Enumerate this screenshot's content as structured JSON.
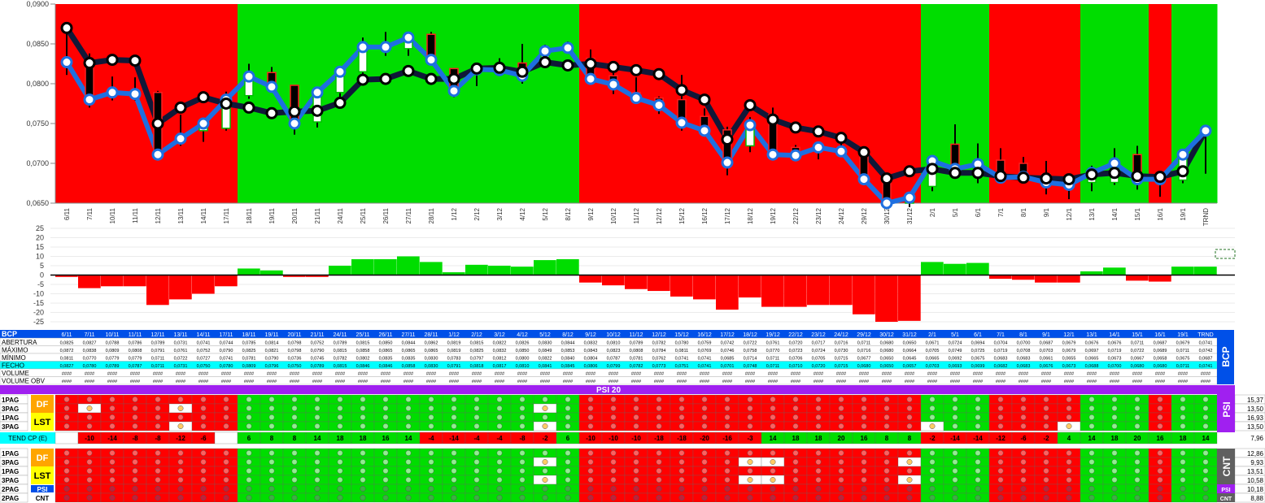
{
  "chart_data": [
    {
      "type": "candlestick",
      "ylim": [
        0.065,
        0.09
      ],
      "yticks": [
        "0,0650",
        "0,0700",
        "0,0750",
        "0,0800",
        "0,0850",
        "0,0900"
      ],
      "categories": [
        "6/11",
        "7/11",
        "10/11",
        "11/11",
        "12/11",
        "13/11",
        "14/11",
        "17/11",
        "18/11",
        "19/11",
        "20/11",
        "21/11",
        "24/11",
        "25/11",
        "26/11",
        "27/11",
        "28/11",
        "1/12",
        "2/12",
        "3/12",
        "4/12",
        "5/12",
        "8/12",
        "9/12",
        "10/12",
        "11/12",
        "12/12",
        "15/12",
        "16/12",
        "17/12",
        "18/12",
        "19/12",
        "22/12",
        "23/12",
        "24/12",
        "29/12",
        "30/12",
        "31/12",
        "2/1",
        "5/1",
        "6/1",
        "7/1",
        "8/1",
        "9/1",
        "12/1",
        "13/1",
        "14/1",
        "15/1",
        "16/1",
        "19/1",
        "TRND"
      ],
      "background": [
        "R",
        "R",
        "R",
        "R",
        "R",
        "R",
        "R",
        "R",
        "G",
        "G",
        "G",
        "G",
        "G",
        "G",
        "G",
        "G",
        "G",
        "G",
        "G",
        "G",
        "G",
        "G",
        "G",
        "R",
        "R",
        "R",
        "R",
        "R",
        "R",
        "R",
        "R",
        "R",
        "R",
        "R",
        "R",
        "R",
        "R",
        "R",
        "G",
        "G",
        "G",
        "R",
        "R",
        "R",
        "R",
        "G",
        "G",
        "G",
        "R",
        "G",
        "G"
      ],
      "open": [
        0.0825,
        0.0827,
        0.0788,
        0.0786,
        0.0789,
        0.0731,
        0.0741,
        0.0744,
        0.0785,
        0.0814,
        0.0798,
        0.0752,
        0.0789,
        0.0815,
        0.085,
        0.0844,
        0.0862,
        0.0819,
        0.0815,
        0.0822,
        0.0826,
        0.083,
        0.0844,
        0.0832,
        0.081,
        0.0789,
        0.0782,
        0.078,
        0.0759,
        0.0742,
        0.0722,
        0.0761,
        0.072,
        0.0717,
        0.0716,
        0.0711,
        0.068,
        0.065,
        0.0671,
        0.0724,
        0.0694,
        0.0704,
        0.07,
        0.0687,
        0.0679,
        0.0676,
        0.0676,
        0.0711,
        0.0687,
        0.0679,
        0.0741
      ],
      "high": [
        0.0872,
        0.0838,
        0.0809,
        0.0808,
        0.0791,
        0.0761,
        0.0752,
        0.079,
        0.0825,
        0.0821,
        0.0798,
        0.079,
        0.0815,
        0.0858,
        0.0865,
        0.0865,
        0.0865,
        0.0819,
        0.0825,
        0.0832,
        0.085,
        0.0849,
        0.0853,
        0.0843,
        0.0823,
        0.0808,
        0.0784,
        0.0811,
        0.0769,
        0.0746,
        0.0758,
        0.077,
        0.0723,
        0.0724,
        0.073,
        0.0716,
        0.068,
        0.0664,
        0.0705,
        0.0749,
        0.0725,
        0.0719,
        0.0708,
        0.0703,
        0.0679,
        0.0697,
        0.0719,
        0.0722,
        0.0689,
        0.0711,
        0.0742
      ],
      "low": [
        0.0811,
        0.077,
        0.0779,
        0.0779,
        0.0711,
        0.0722,
        0.0727,
        0.0741,
        0.0781,
        0.079,
        0.0736,
        0.0745,
        0.0782,
        0.0802,
        0.0835,
        0.0835,
        0.083,
        0.0783,
        0.0797,
        0.0812,
        0.08,
        0.0822,
        0.084,
        0.0804,
        0.0787,
        0.0781,
        0.0762,
        0.0741,
        0.0741,
        0.0685,
        0.0714,
        0.0711,
        0.0706,
        0.0705,
        0.0715,
        0.0677,
        0.065,
        0.0645,
        0.0665,
        0.0692,
        0.0675,
        0.0683,
        0.0683,
        0.0661,
        0.0655,
        0.0665,
        0.0673,
        0.0667,
        0.0658,
        0.0675,
        0.0687
      ],
      "close": [
        0.0827,
        0.078,
        0.0789,
        0.0787,
        0.0711,
        0.0731,
        0.075,
        0.078,
        0.0809,
        0.0796,
        0.075,
        0.0789,
        0.0815,
        0.0846,
        0.0846,
        0.0858,
        0.083,
        0.0791,
        0.0818,
        0.0817,
        0.081,
        0.0841,
        0.0845,
        0.0806,
        0.0799,
        0.0782,
        0.0773,
        0.0751,
        0.0741,
        0.0701,
        0.0748,
        0.0711,
        0.071,
        0.072,
        0.0715,
        0.068,
        0.065,
        0.0657,
        0.0703,
        0.0693,
        0.0699,
        0.0682,
        0.0683,
        0.0676,
        0.0673,
        0.0688,
        0.07,
        0.068,
        0.068,
        0.0711,
        0.0741
      ],
      "black_line": [
        0.087,
        0.0826,
        0.083,
        0.0829,
        0.075,
        0.077,
        0.0783,
        0.0775,
        0.077,
        0.0763,
        0.0765,
        0.0766,
        0.0776,
        0.0805,
        0.0806,
        0.0816,
        0.0806,
        0.0806,
        0.0819,
        0.082,
        0.0815,
        0.0827,
        0.0823,
        0.0825,
        0.0821,
        0.0817,
        0.0812,
        0.0792,
        0.078,
        0.073,
        0.0773,
        0.0755,
        0.0745,
        0.074,
        0.0732,
        0.0714,
        0.0681,
        0.069,
        0.0693,
        0.0688,
        0.0688,
        0.0684,
        0.0682,
        0.0681,
        0.068,
        0.0686,
        0.0688,
        0.0684,
        0.0683,
        0.069,
        0.0741
      ]
    },
    {
      "type": "bar",
      "ylim": [
        -25,
        25
      ],
      "yticks": [
        "25",
        "20",
        "15",
        "10",
        "5",
        "0",
        "-5",
        "-10",
        "-15",
        "-20",
        "-25"
      ],
      "values": [
        -1,
        -7,
        -6,
        -6,
        -16,
        -13,
        -10,
        -6,
        3.5,
        2.5,
        -1,
        -1,
        5,
        8.5,
        8.5,
        10,
        7,
        1.5,
        5.5,
        5,
        4.5,
        8,
        8.5,
        -4,
        -5.5,
        -7.5,
        -8.5,
        -11.5,
        -13,
        -18.5,
        -12,
        -17,
        -17,
        -16,
        -16,
        -21,
        -25,
        -24.5,
        7,
        6,
        6.5,
        -2,
        -2.5,
        -4,
        -4,
        2,
        4,
        -3,
        -3.5,
        4.5,
        4.5
      ]
    }
  ],
  "table": {
    "ticker": "BCP",
    "side_label": "BCP",
    "row_labels": [
      "ABERTURA",
      "MÁXIMO",
      "MÍNIMO",
      "FECHO",
      "VOLUME",
      "VOLUME OBV"
    ],
    "volume_placeholder": "####"
  },
  "psi": {
    "title": "PSI 20",
    "side_label": "PSI",
    "rows": [
      {
        "label": "1PAG",
        "tag": "DF",
        "value": "15,37"
      },
      {
        "label": "3PAG",
        "tag": "DF",
        "value": "13,50"
      },
      {
        "label": "1PAG",
        "tag": "LST",
        "value": "16,93"
      },
      {
        "label": "3PAG",
        "tag": "LST",
        "value": "13,50"
      }
    ],
    "trend_label": "TEND CP (E)",
    "trend_value": "7,96",
    "trend": [
      "",
      "-10",
      "-14",
      "-8",
      "-8",
      "-12",
      "-6",
      "",
      "6",
      "8",
      "8",
      "14",
      "18",
      "18",
      "16",
      "14",
      "-4",
      "-14",
      "-4",
      "-4",
      "-8",
      "-2",
      "6",
      "-10",
      "-10",
      "-10",
      "-18",
      "-18",
      "-20",
      "-16",
      "-3",
      "14",
      "18",
      "18",
      "20",
      "16",
      "8",
      "8",
      "-2",
      "-14",
      "-14",
      "-12",
      "-6",
      "-2",
      "4",
      "14",
      "18",
      "20",
      "16",
      "18",
      "14"
    ]
  },
  "cnt": {
    "side_label": "CNT",
    "rows": [
      {
        "label": "1PAG",
        "tag": "DF",
        "value": "12,86"
      },
      {
        "label": "3PAG",
        "tag": "DF",
        "value": "9,93"
      },
      {
        "label": "1PAG",
        "tag": "LST",
        "value": "13,51"
      },
      {
        "label": "3PAG",
        "tag": "LST",
        "value": "10,58"
      }
    ],
    "bottom_rows": [
      {
        "label": "2PAG",
        "tag": "PSI",
        "value": "10,18",
        "end_tag": "PSI"
      },
      {
        "label": "2PAG",
        "tag": "CNT",
        "value": "8,88",
        "end_tag": "CNT"
      }
    ]
  },
  "colors": {
    "bull_bg": "#00dd00",
    "bear_bg": "#ff0000",
    "blue_line": "#1e6fe0",
    "black_line": "#101838",
    "panel_blue": "#0050e8",
    "purple": "#a020f0",
    "cyan": "#00ffff",
    "orange": "#ffa500",
    "yellow": "#ffff00"
  }
}
